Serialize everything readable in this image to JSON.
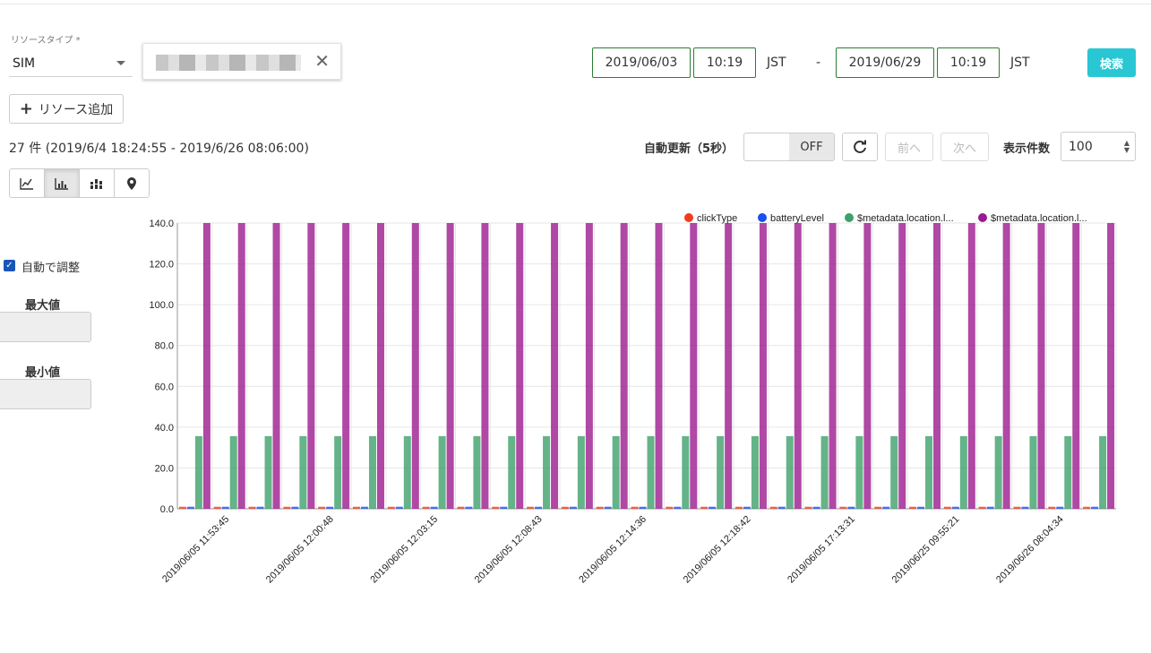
{
  "resource": {
    "type_label": "リソースタイプ *",
    "type_value": "SIM"
  },
  "date_range": {
    "from_date": "2019/06/03",
    "from_time": "10:19",
    "from_tz": "JST",
    "separator": "-",
    "to_date": "2019/06/29",
    "to_time": "10:19",
    "to_tz": "JST",
    "search_label": "検索"
  },
  "toolbar": {
    "add_resource_label": "リソース追加",
    "count_text": "27 件 (2019/6/4 18:24:55 - 2019/6/26 08:06:00)",
    "auto_refresh_label": "自動更新（5秒）",
    "toggle_state": "OFF",
    "prev_label": "前へ",
    "next_label": "次へ",
    "per_page_label": "表示件数",
    "per_page_value": "100",
    "view_icons": [
      "line-chart-icon",
      "bar-chart-icon",
      "stacked-bar-chart-icon",
      "map-pin-icon"
    ],
    "active_view": "bar-chart-icon"
  },
  "axis_panel": {
    "auto_adjust_label": "自動で調整",
    "auto_adjust_checked": true,
    "max_label": "最大値",
    "min_label": "最小値"
  },
  "chart_data": {
    "type": "bar",
    "ylim": [
      0,
      140
    ],
    "yticks": [
      "0.0",
      "20.0",
      "40.0",
      "60.0",
      "80.0",
      "100.0",
      "120.0",
      "140.0"
    ],
    "grid": true,
    "legend_position": "top-right",
    "categories_count": 27,
    "xtick_labels": [
      "2019/06/05 11:53:45",
      "2019/06/05 12:00:48",
      "2019/06/05 12:03:15",
      "2019/06/05 12:08:43",
      "2019/06/05 12:14:36",
      "2019/06/05 12:18:42",
      "2019/06/05 17:13:31",
      "2019/06/25 09:55:21",
      "2019/06/26 08:04:34"
    ],
    "series": [
      {
        "name": "clickType",
        "color": "#f03c1e",
        "value": 1
      },
      {
        "name": "batteryLevel",
        "color": "#1a4ff0",
        "value": 1
      },
      {
        "name": "$metadata.location.l...",
        "color": "#3fa06a",
        "value": 35.6
      },
      {
        "name": "$metadata.location.l...",
        "color": "#9c1a8f",
        "value": 140
      }
    ]
  }
}
